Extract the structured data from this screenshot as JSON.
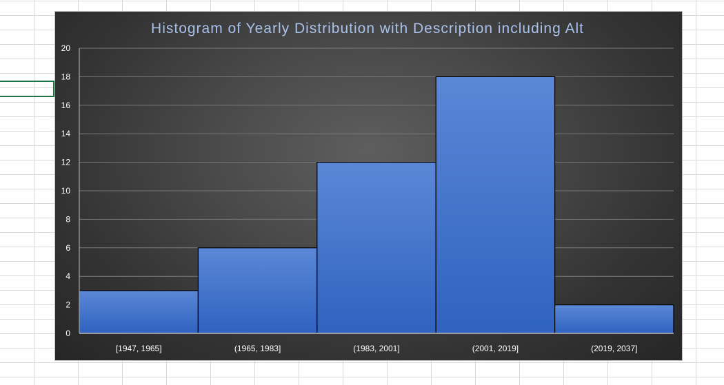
{
  "spreadsheet": {
    "gridline_color": "#d8d8d8",
    "selection_color": "#217346"
  },
  "chart_data": {
    "type": "bar",
    "title": "Histogram of Yearly Distribution with Description including Alt",
    "categories": [
      "[1947, 1965]",
      "(1965, 1983]",
      "(1983, 2001]",
      "(2001, 2019]",
      "(2019, 2037]"
    ],
    "values": [
      3,
      6,
      12,
      18,
      2
    ],
    "xlabel": "",
    "ylabel": "",
    "ylim": [
      0,
      20
    ],
    "yticks": [
      0,
      2,
      4,
      6,
      8,
      10,
      12,
      14,
      16,
      18,
      20
    ],
    "grid": true,
    "legend": "none",
    "bar_color": "#4472c4",
    "background": "dark-radial",
    "title_color": "#a9c1ea"
  }
}
